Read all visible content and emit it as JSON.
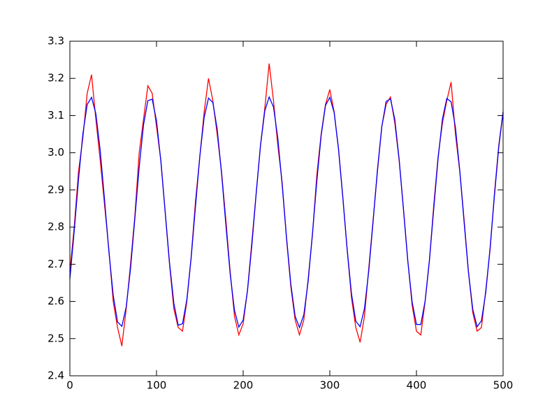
{
  "chart_data": {
    "type": "line",
    "x": [
      0,
      5,
      10,
      15,
      20,
      25,
      30,
      35,
      40,
      45,
      50,
      55,
      60,
      65,
      70,
      75,
      80,
      85,
      90,
      95,
      100,
      105,
      110,
      115,
      120,
      125,
      130,
      135,
      140,
      145,
      150,
      155,
      160,
      165,
      170,
      175,
      180,
      185,
      190,
      195,
      200,
      205,
      210,
      215,
      220,
      225,
      230,
      235,
      240,
      245,
      250,
      255,
      260,
      265,
      270,
      275,
      280,
      285,
      290,
      295,
      300,
      305,
      310,
      315,
      320,
      325,
      330,
      335,
      340,
      345,
      350,
      355,
      360,
      365,
      370,
      375,
      380,
      385,
      390,
      395,
      400,
      405,
      410,
      415,
      420,
      425,
      430,
      435,
      440,
      445,
      450,
      455,
      460,
      465,
      470,
      475,
      480,
      485,
      490,
      495,
      500
    ],
    "series": [
      {
        "color": "#ff0000",
        "values": [
          2.68,
          2.8,
          2.95,
          3.04,
          3.16,
          3.21,
          3.09,
          2.98,
          2.86,
          2.74,
          2.6,
          2.53,
          2.48,
          2.58,
          2.7,
          2.83,
          3.0,
          3.09,
          3.18,
          3.16,
          3.07,
          2.98,
          2.84,
          2.7,
          2.58,
          2.53,
          2.52,
          2.6,
          2.72,
          2.87,
          2.99,
          3.11,
          3.2,
          3.14,
          3.05,
          2.95,
          2.82,
          2.68,
          2.56,
          2.51,
          2.54,
          2.63,
          2.76,
          2.89,
          3.02,
          3.12,
          3.24,
          3.14,
          3.02,
          2.92,
          2.77,
          2.64,
          2.55,
          2.51,
          2.55,
          2.66,
          2.78,
          2.94,
          3.05,
          3.13,
          3.17,
          3.11,
          3.01,
          2.88,
          2.74,
          2.61,
          2.53,
          2.49,
          2.56,
          2.69,
          2.82,
          2.95,
          3.07,
          3.13,
          3.15,
          3.08,
          2.98,
          2.85,
          2.71,
          2.59,
          2.52,
          2.51,
          2.6,
          2.71,
          2.86,
          2.99,
          3.08,
          3.14,
          3.19,
          3.05,
          2.95,
          2.82,
          2.68,
          2.57,
          2.52,
          2.53,
          2.63,
          2.74,
          2.89,
          3.02,
          3.11
        ]
      },
      {
        "color": "#0000ff",
        "values": [
          2.66,
          2.789,
          2.929,
          3.051,
          3.13,
          3.149,
          3.105,
          3.006,
          2.874,
          2.735,
          2.617,
          2.545,
          2.533,
          2.585,
          2.688,
          2.823,
          2.961,
          3.075,
          3.14,
          3.144,
          3.086,
          2.977,
          2.841,
          2.704,
          2.595,
          2.536,
          2.54,
          2.605,
          2.718,
          2.856,
          2.991,
          3.095,
          3.147,
          3.135,
          3.064,
          2.946,
          2.807,
          2.674,
          2.576,
          2.531,
          2.55,
          2.629,
          2.75,
          2.89,
          3.019,
          3.113,
          3.15,
          3.123,
          3.039,
          2.914,
          2.773,
          2.647,
          2.56,
          2.53,
          2.564,
          2.654,
          2.783,
          2.923,
          3.046,
          3.127,
          3.149,
          3.108,
          3.012,
          2.881,
          2.741,
          2.621,
          2.547,
          2.532,
          2.581,
          2.683,
          2.816,
          2.955,
          3.07,
          3.138,
          3.145,
          3.09,
          2.983,
          2.847,
          2.709,
          2.599,
          2.538,
          2.538,
          2.601,
          2.712,
          2.85,
          2.985,
          3.091,
          3.146,
          3.137,
          3.068,
          2.952,
          2.813,
          2.679,
          2.579,
          2.532,
          2.548,
          2.624,
          2.744,
          2.884,
          3.015,
          3.11
        ]
      }
    ],
    "xlim": [
      0,
      500
    ],
    "xticks": [
      0,
      100,
      200,
      300,
      400,
      500
    ],
    "ylim": [
      2.4,
      3.3
    ],
    "yticks": [
      2.4,
      2.5,
      2.6,
      2.7,
      2.8,
      2.9,
      {
        "value": 3,
        "label": "3.0"
      },
      3.1,
      3.2,
      3.3
    ],
    "grid": false
  }
}
